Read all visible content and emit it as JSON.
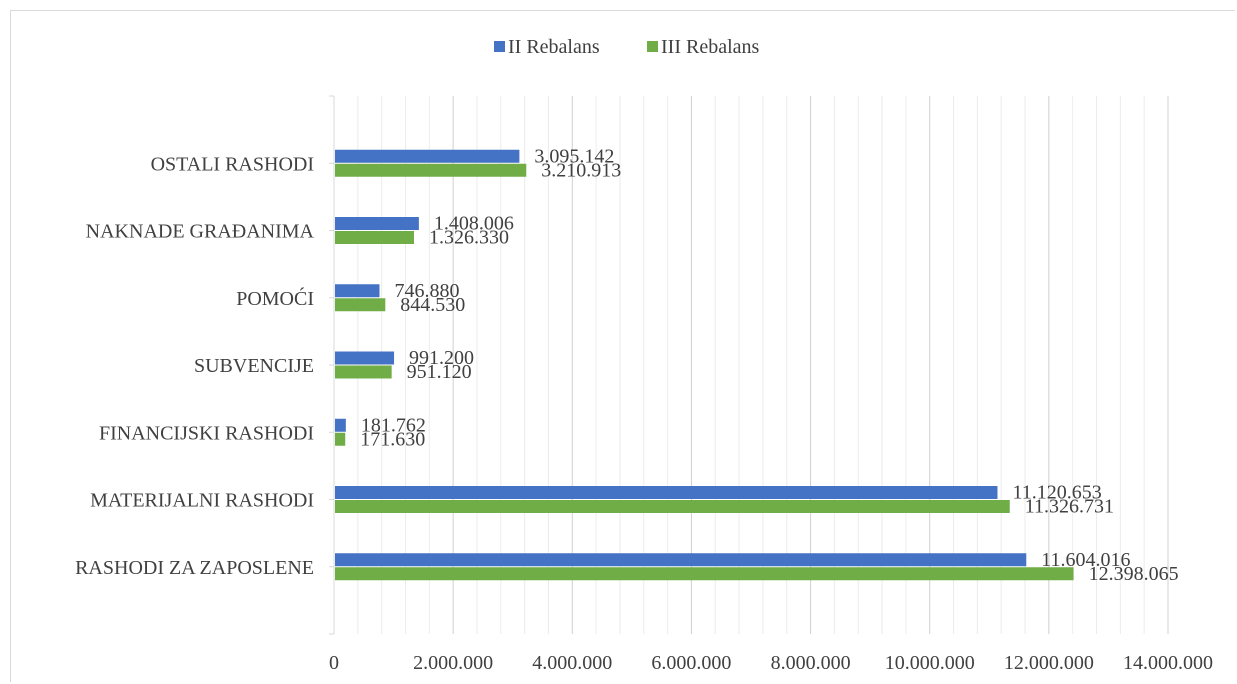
{
  "chart_data": {
    "type": "bar",
    "orientation": "horizontal",
    "categories": [
      "RASHODI ZA ZAPOSLENE",
      "MATERIJALNI RASHODI",
      "FINANCIJSKI RASHODI",
      "SUBVENCIJE",
      "POMOĆI",
      "NAKNADE GRAĐANIMA",
      "OSTALI RASHODI"
    ],
    "series": [
      {
        "name": "II Rebalans",
        "color": "#4472c4",
        "values": [
          11604016,
          11120653,
          181762,
          991200,
          746880,
          1408006,
          3095142
        ],
        "labels": [
          "11.604.016",
          "11.120.653",
          "181.762",
          "991.200",
          "746.880",
          "1.408.006",
          "3.095.142"
        ]
      },
      {
        "name": "III Rebalans",
        "color": "#70ad47",
        "values": [
          12398065,
          11326731,
          171630,
          951120,
          844530,
          1326330,
          3210913
        ],
        "labels": [
          "12.398.065",
          "11.326.731",
          "171.630",
          "951.120",
          "844.530",
          "1.326.330",
          "3.210.913"
        ]
      }
    ],
    "x_ticks": [
      "0",
      "2.000.000",
      "4.000.000",
      "6.000.000",
      "8.000.000",
      "10.000.000",
      "12.000.000",
      "14.000.000"
    ],
    "xlim": [
      0,
      14000000
    ],
    "major_step": 2000000,
    "minor_step": 400000,
    "grid": true,
    "legend_position": "top"
  }
}
